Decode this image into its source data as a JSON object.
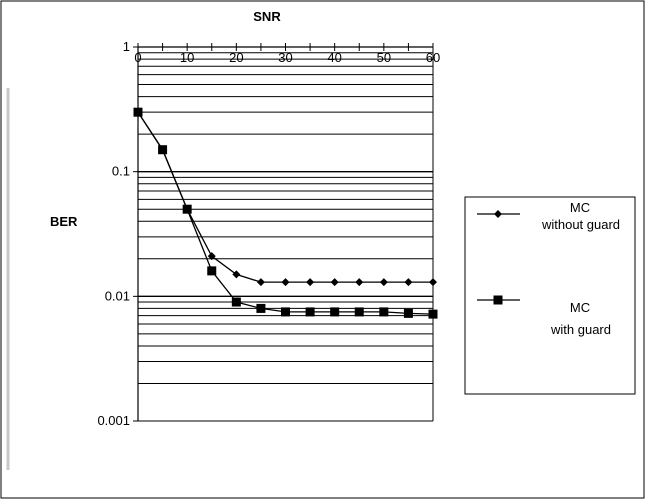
{
  "chart_data": {
    "type": "line",
    "title": "",
    "xlabel": "SNR",
    "ylabel": "BER",
    "x_axis_position": "top",
    "y_scale": "log",
    "xlim": [
      0,
      60
    ],
    "ylim": [
      0.001,
      1
    ],
    "x_ticks": [
      0,
      10,
      20,
      30,
      40,
      50,
      60
    ],
    "x_tick_labels": [
      "0",
      "10",
      "20",
      "30",
      "40",
      "50",
      "60"
    ],
    "y_ticks": [
      1,
      0.1,
      0.01,
      0.001
    ],
    "y_tick_labels": [
      "1",
      "0.1",
      "0.01",
      "0.001"
    ],
    "grid": true,
    "legend": "right",
    "series": [
      {
        "name": "MC without guard",
        "legend_lines": [
          "MC",
          "without guard"
        ],
        "marker": "diamond",
        "color": "#000000",
        "x": [
          0,
          5,
          10,
          15,
          20,
          25,
          30,
          35,
          40,
          45,
          50,
          55,
          60
        ],
        "values": [
          0.3,
          0.15,
          0.05,
          0.021,
          0.015,
          0.013,
          0.013,
          0.013,
          0.013,
          0.013,
          0.013,
          0.013,
          0.013
        ]
      },
      {
        "name": "MC with guard",
        "legend_lines": [
          "MC",
          "with guard"
        ],
        "marker": "square",
        "color": "#000000",
        "x": [
          0,
          5,
          10,
          15,
          20,
          25,
          30,
          35,
          40,
          45,
          50,
          55,
          60
        ],
        "values": [
          0.3,
          0.15,
          0.05,
          0.016,
          0.009,
          0.008,
          0.0075,
          0.0075,
          0.0075,
          0.0075,
          0.0075,
          0.0073,
          0.0072
        ]
      }
    ]
  }
}
